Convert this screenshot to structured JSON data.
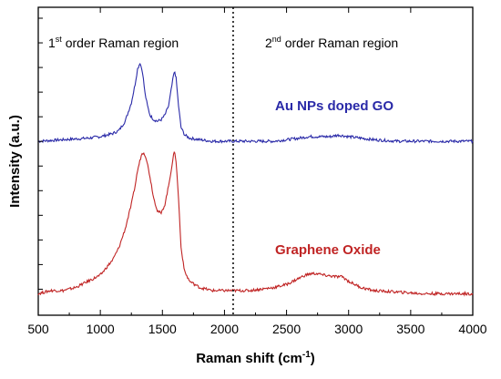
{
  "chart_data": {
    "type": "line",
    "xlabel": "Raman shift (cm",
    "xlabel_sup": "-1",
    "xlabel_close": ")",
    "ylabel": "Intensity (a.u.)",
    "xlim": [
      500,
      4000
    ],
    "ylim": [
      0,
      100
    ],
    "xticks": [
      500,
      1000,
      1500,
      2000,
      2500,
      3000,
      3500,
      4000
    ],
    "tick_labels": [
      "500",
      "1000",
      "1500",
      "2000",
      "2500",
      "3000",
      "3500",
      "4000"
    ],
    "divider_x": 2070,
    "regions": [
      {
        "prefix": "1",
        "sup": "st",
        "text": " order Raman region"
      },
      {
        "prefix": "2",
        "sup": "nd",
        "text": " order Raman region"
      }
    ],
    "series": [
      {
        "name": "Au NPs doped GO",
        "color": "#2a2aa8",
        "x": [
          500,
          700,
          900,
          1000,
          1100,
          1150,
          1200,
          1250,
          1280,
          1300,
          1320,
          1340,
          1360,
          1380,
          1400,
          1430,
          1460,
          1490,
          1520,
          1550,
          1570,
          1590,
          1600,
          1610,
          1630,
          1650,
          1680,
          1720,
          1800,
          1900,
          2000,
          2100,
          2200,
          2300,
          2400,
          2500,
          2600,
          2680,
          2750,
          2850,
          2920,
          3000,
          3100,
          3200,
          3400,
          3600,
          3800,
          4000
        ],
        "y": [
          56.5,
          57,
          57.5,
          58,
          59,
          60,
          63,
          69,
          75,
          80,
          82,
          79,
          72,
          68,
          65,
          63.5,
          63,
          63.5,
          65,
          68,
          73,
          78,
          79,
          77,
          68,
          61,
          58.5,
          57.5,
          57,
          56.5,
          56.5,
          56.5,
          56.5,
          56.5,
          56.5,
          57,
          57.5,
          58,
          58,
          58,
          58.5,
          58,
          57.5,
          57,
          56.5,
          56.5,
          56.5,
          56.5
        ]
      },
      {
        "name": "Graphene Oxide",
        "color": "#c02424",
        "x": [
          500,
          600,
          700,
          800,
          900,
          1000,
          1100,
          1150,
          1200,
          1250,
          1280,
          1300,
          1330,
          1350,
          1370,
          1400,
          1430,
          1460,
          1490,
          1520,
          1550,
          1570,
          1590,
          1600,
          1610,
          1630,
          1650,
          1680,
          1720,
          1800,
          1900,
          2000,
          2100,
          2200,
          2300,
          2400,
          2500,
          2600,
          2650,
          2700,
          2750,
          2800,
          2900,
          2950,
          3000,
          3100,
          3200,
          3400,
          3600,
          3800,
          4000
        ],
        "y": [
          7,
          8,
          8,
          9,
          11,
          13,
          18,
          22,
          28,
          36,
          42,
          47,
          52,
          53,
          51,
          45,
          38,
          34,
          33,
          36,
          42,
          47,
          52,
          53,
          50,
          38,
          22,
          14,
          11,
          9,
          8,
          8,
          8,
          8,
          8.5,
          9,
          10,
          12,
          13,
          13.5,
          13.5,
          13,
          12.5,
          12.5,
          11,
          9,
          8,
          7.5,
          7,
          7,
          7
        ]
      }
    ]
  }
}
